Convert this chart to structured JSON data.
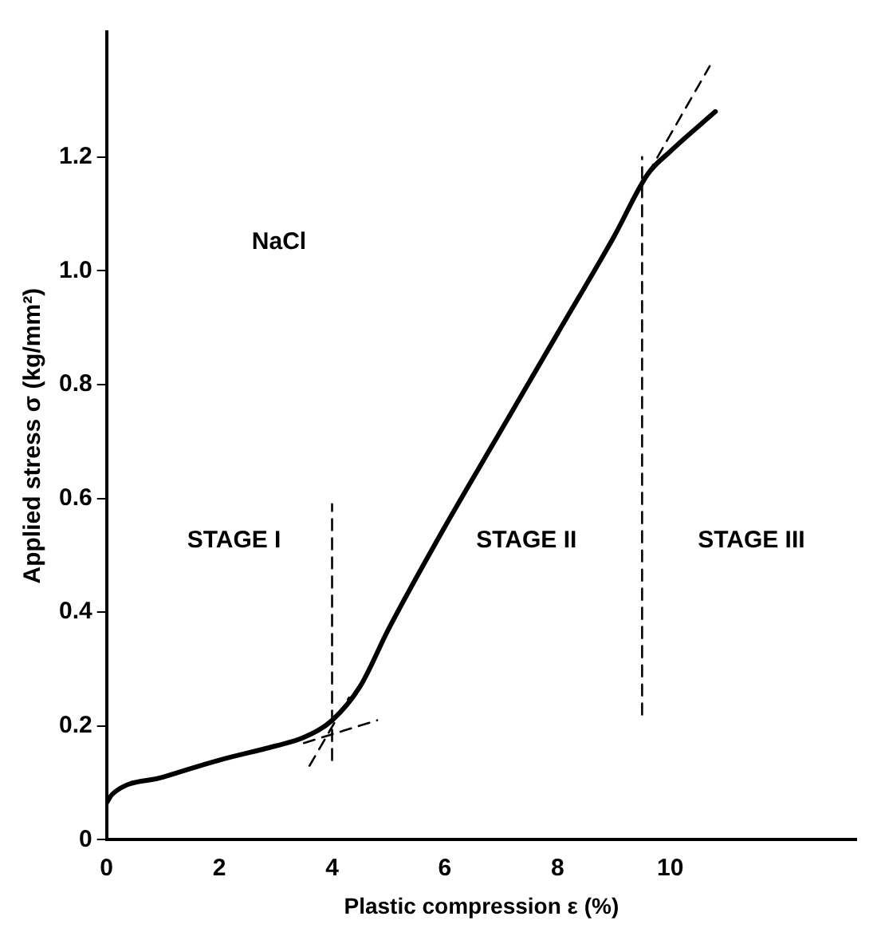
{
  "chart_data": {
    "type": "line",
    "xlabel": "Plastic compression ε (%)",
    "ylabel": "Applied stress σ (kg/mm²)",
    "xlim": [
      0,
      13.3
    ],
    "ylim": [
      0,
      1.42
    ],
    "xticks": [
      0,
      2,
      4,
      6,
      8,
      10
    ],
    "yticks": [
      0,
      0.2,
      0.4,
      0.6,
      0.8,
      {
        "value": 1,
        "label": "1.0"
      },
      1.2
    ],
    "grid": false,
    "legend": false,
    "marker": "none",
    "series": [
      {
        "color": "#000000",
        "line_style": "solid",
        "x": [
          0,
          0.1,
          1,
          2,
          3,
          3.5,
          4,
          4.5,
          5,
          6,
          7,
          8,
          9,
          9.6,
          10,
          10.8
        ],
        "values": [
          0.065,
          0.08,
          0.11,
          0.14,
          0.165,
          0.18,
          0.21,
          0.27,
          0.37,
          0.55,
          0.72,
          0.89,
          1.06,
          1.17,
          1.21,
          1.28
        ]
      },
      {
        "color": "#000000",
        "line_style": "dashed",
        "x": [
          3.5,
          4.8
        ],
        "values": [
          0.17,
          0.21
        ]
      },
      {
        "color": "#000000",
        "line_style": "dashed",
        "x": [
          3.6,
          4.3
        ],
        "values": [
          0.13,
          0.25
        ]
      },
      {
        "color": "#000000",
        "line_style": "dashed",
        "x": [
          9.6,
          10.7
        ],
        "values": [
          1.17,
          1.36
        ]
      },
      {
        "color": "#000000",
        "line_style": "dashed",
        "x": [
          4,
          4
        ],
        "values": [
          0.14,
          0.59
        ]
      },
      {
        "color": "#000000",
        "line_style": "dashed",
        "x": [
          9.5,
          9.5
        ],
        "values": [
          0.22,
          1.2
        ]
      }
    ],
    "annotations": [
      "NaCl",
      "STAGE I",
      "STAGE II",
      "STAGE III"
    ]
  }
}
